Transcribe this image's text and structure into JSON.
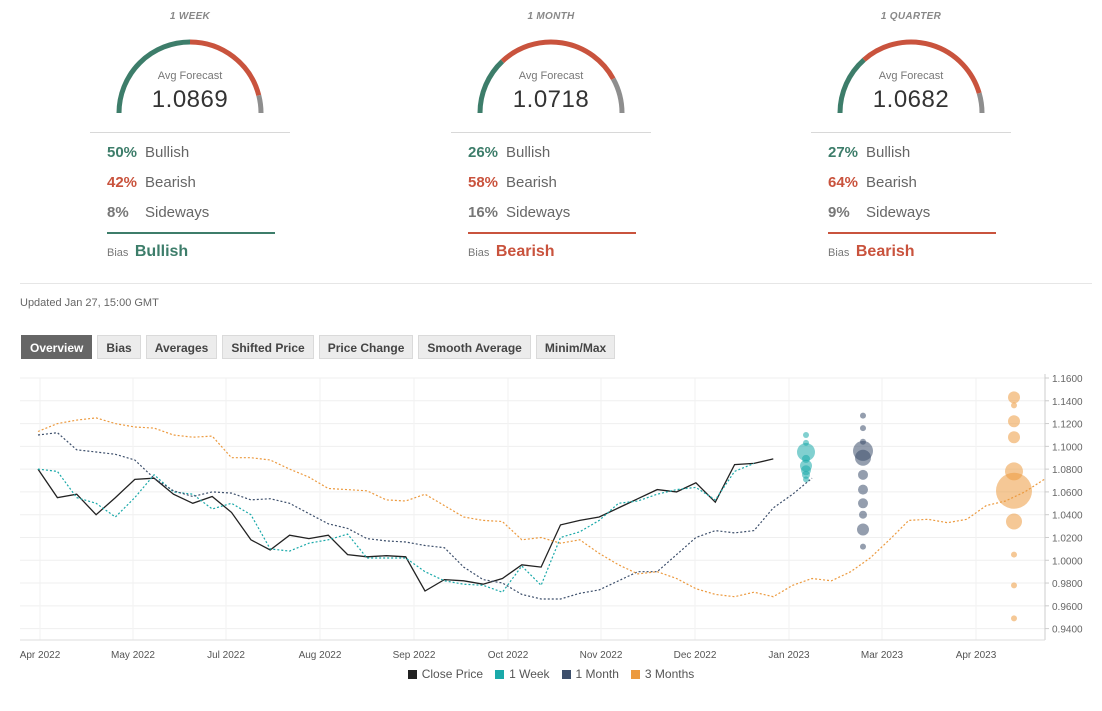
{
  "panels": [
    {
      "label": "1 WEEK",
      "caption": "Avg Forecast",
      "value": "1.0869",
      "bullish": {
        "pct": "50%",
        "label": "Bullish"
      },
      "bearish": {
        "pct": "42%",
        "label": "Bearish"
      },
      "sideways": {
        "pct": "8%",
        "label": "Sideways"
      },
      "bias_label": "Bias",
      "bias_value": "Bullish",
      "bias_color": "#3d7d6a",
      "gauge": {
        "bullish": 50,
        "bearish": 42,
        "sideways": 8
      }
    },
    {
      "label": "1 MONTH",
      "caption": "Avg Forecast",
      "value": "1.0718",
      "bullish": {
        "pct": "26%",
        "label": "Bullish"
      },
      "bearish": {
        "pct": "58%",
        "label": "Bearish"
      },
      "sideways": {
        "pct": "16%",
        "label": "Sideways"
      },
      "bias_label": "Bias",
      "bias_value": "Bearish",
      "bias_color": "#c9533d",
      "gauge": {
        "bullish": 26,
        "bearish": 58,
        "sideways": 16
      }
    },
    {
      "label": "1 QUARTER",
      "caption": "Avg Forecast",
      "value": "1.0682",
      "bullish": {
        "pct": "27%",
        "label": "Bullish"
      },
      "bearish": {
        "pct": "64%",
        "label": "Bearish"
      },
      "sideways": {
        "pct": "9%",
        "label": "Sideways"
      },
      "bias_label": "Bias",
      "bias_value": "Bearish",
      "bias_color": "#c9533d",
      "gauge": {
        "bullish": 27,
        "bearish": 64,
        "sideways": 9
      }
    }
  ],
  "updated": "Updated Jan 27, 15:00 GMT",
  "tabs": [
    "Overview",
    "Bias",
    "Averages",
    "Shifted Price",
    "Price Change",
    "Smooth Average",
    "Minim/Max"
  ],
  "active_tab": "Overview",
  "colors": {
    "bullish": "#3d7d6a",
    "bearish": "#c9533d",
    "sideways": "#8e8e8e",
    "close": "#222222",
    "week": "#1aa9a9",
    "month": "#3d4f6b",
    "quarter": "#ec9a3f"
  },
  "chart_data": {
    "type": "line",
    "y_axis_side": "right",
    "ylim": [
      0.93,
      1.16
    ],
    "y_ticks": [
      "1.1600",
      "1.1400",
      "1.1200",
      "1.1000",
      "1.0800",
      "1.0600",
      "1.0400",
      "1.0200",
      "1.0000",
      "0.9800",
      "0.9600",
      "0.9400"
    ],
    "x_ticks": [
      "Apr 2022",
      "May 2022",
      "Jul 2022",
      "Aug 2022",
      "Sep 2022",
      "Oct 2022",
      "Nov 2022",
      "Dec 2022",
      "Jan 2023",
      "Mar 2023",
      "Apr 2023"
    ],
    "legend": [
      {
        "name": "Close Price",
        "color": "#222222"
      },
      {
        "name": "1 Week",
        "color": "#1aa9a9"
      },
      {
        "name": "1 Month",
        "color": "#3d4f6b"
      },
      {
        "name": "3 Months",
        "color": "#ec9a3f"
      }
    ],
    "series": [
      {
        "name": "Close Price",
        "style": "solid",
        "points": [
          [
            0,
            1.08
          ],
          [
            1,
            1.055
          ],
          [
            2,
            1.058
          ],
          [
            3,
            1.04
          ],
          [
            4,
            1.055
          ],
          [
            5,
            1.071
          ],
          [
            6,
            1.072
          ],
          [
            7,
            1.058
          ],
          [
            8,
            1.05
          ],
          [
            9,
            1.056
          ],
          [
            10,
            1.042
          ],
          [
            11,
            1.018
          ],
          [
            12,
            1.009
          ],
          [
            13,
            1.022
          ],
          [
            14,
            1.019
          ],
          [
            15,
            1.022
          ],
          [
            16,
            1.005
          ],
          [
            17,
            1.003
          ],
          [
            18,
            1.004
          ],
          [
            19,
            1.003
          ],
          [
            20,
            0.973
          ],
          [
            21,
            0.983
          ],
          [
            22,
            0.982
          ],
          [
            23,
            0.979
          ],
          [
            24,
            0.984
          ],
          [
            25,
            0.996
          ],
          [
            26,
            0.994
          ],
          [
            27,
            1.031
          ],
          [
            28,
            1.035
          ],
          [
            29,
            1.038
          ],
          [
            30,
            1.046
          ],
          [
            31,
            1.054
          ],
          [
            32,
            1.062
          ],
          [
            33,
            1.06
          ],
          [
            34,
            1.068
          ],
          [
            35,
            1.051
          ],
          [
            36,
            1.084
          ],
          [
            37,
            1.085
          ],
          [
            38,
            1.089
          ]
        ]
      },
      {
        "name": "1 Week",
        "style": "dotted",
        "points": [
          [
            0,
            1.08
          ],
          [
            1,
            1.078
          ],
          [
            2,
            1.055
          ],
          [
            3,
            1.05
          ],
          [
            4,
            1.038
          ],
          [
            5,
            1.055
          ],
          [
            6,
            1.075
          ],
          [
            7,
            1.06
          ],
          [
            8,
            1.058
          ],
          [
            9,
            1.045
          ],
          [
            10,
            1.05
          ],
          [
            11,
            1.04
          ],
          [
            12,
            1.01
          ],
          [
            13,
            1.008
          ],
          [
            14,
            1.015
          ],
          [
            15,
            1.018
          ],
          [
            16,
            1.023
          ],
          [
            17,
            1.002
          ],
          [
            18,
            1.002
          ],
          [
            19,
            1.002
          ],
          [
            20,
            0.99
          ],
          [
            21,
            0.982
          ],
          [
            22,
            0.979
          ],
          [
            23,
            0.978
          ],
          [
            24,
            0.972
          ],
          [
            25,
            0.995
          ],
          [
            26,
            0.978
          ],
          [
            27,
            1.02
          ],
          [
            28,
            1.025
          ],
          [
            29,
            1.035
          ],
          [
            30,
            1.05
          ],
          [
            31,
            1.052
          ],
          [
            32,
            1.058
          ],
          [
            33,
            1.062
          ],
          [
            34,
            1.064
          ],
          [
            35,
            1.053
          ],
          [
            36,
            1.078
          ],
          [
            37,
            1.085
          ]
        ]
      },
      {
        "name": "1 Month",
        "style": "dotted",
        "points": [
          [
            0,
            1.11
          ],
          [
            1,
            1.112
          ],
          [
            2,
            1.097
          ],
          [
            3,
            1.095
          ],
          [
            4,
            1.093
          ],
          [
            5,
            1.088
          ],
          [
            6,
            1.072
          ],
          [
            7,
            1.061
          ],
          [
            8,
            1.056
          ],
          [
            9,
            1.06
          ],
          [
            10,
            1.059
          ],
          [
            11,
            1.053
          ],
          [
            12,
            1.054
          ],
          [
            13,
            1.05
          ],
          [
            14,
            1.041
          ],
          [
            15,
            1.032
          ],
          [
            16,
            1.028
          ],
          [
            17,
            1.019
          ],
          [
            18,
            1.017
          ],
          [
            19,
            1.016
          ],
          [
            20,
            1.013
          ],
          [
            21,
            1.011
          ],
          [
            22,
            0.994
          ],
          [
            23,
            0.983
          ],
          [
            24,
            0.98
          ],
          [
            25,
            0.97
          ],
          [
            26,
            0.966
          ],
          [
            27,
            0.966
          ],
          [
            28,
            0.971
          ],
          [
            29,
            0.974
          ],
          [
            30,
            0.982
          ],
          [
            31,
            0.99
          ],
          [
            32,
            0.99
          ],
          [
            33,
            1.005
          ],
          [
            34,
            1.02
          ],
          [
            35,
            1.026
          ],
          [
            36,
            1.024
          ],
          [
            37,
            1.026
          ],
          [
            38,
            1.046
          ],
          [
            39,
            1.058
          ],
          [
            40,
            1.072
          ]
        ]
      },
      {
        "name": "3 Months",
        "style": "dotted",
        "points": [
          [
            0,
            1.113
          ],
          [
            1,
            1.12
          ],
          [
            2,
            1.123
          ],
          [
            3,
            1.125
          ],
          [
            4,
            1.12
          ],
          [
            5,
            1.117
          ],
          [
            6,
            1.116
          ],
          [
            7,
            1.11
          ],
          [
            8,
            1.108
          ],
          [
            9,
            1.109
          ],
          [
            10,
            1.09
          ],
          [
            11,
            1.09
          ],
          [
            12,
            1.088
          ],
          [
            13,
            1.08
          ],
          [
            14,
            1.073
          ],
          [
            15,
            1.063
          ],
          [
            16,
            1.062
          ],
          [
            17,
            1.061
          ],
          [
            18,
            1.053
          ],
          [
            19,
            1.052
          ],
          [
            20,
            1.058
          ],
          [
            21,
            1.048
          ],
          [
            22,
            1.038
          ],
          [
            23,
            1.035
          ],
          [
            24,
            1.034
          ],
          [
            25,
            1.018
          ],
          [
            26,
            1.02
          ],
          [
            27,
            1.015
          ],
          [
            28,
            1.018
          ],
          [
            29,
            1.006
          ],
          [
            30,
            0.996
          ],
          [
            31,
            0.988
          ],
          [
            32,
            0.99
          ],
          [
            33,
            0.984
          ],
          [
            34,
            0.975
          ],
          [
            35,
            0.97
          ],
          [
            36,
            0.968
          ],
          [
            37,
            0.972
          ],
          [
            38,
            0.968
          ],
          [
            39,
            0.978
          ],
          [
            40,
            0.984
          ],
          [
            41,
            0.982
          ],
          [
            42,
            0.99
          ],
          [
            43,
            1.002
          ],
          [
            44,
            1.018
          ],
          [
            45,
            1.035
          ],
          [
            46,
            1.036
          ],
          [
            47,
            1.033
          ],
          [
            48,
            1.036
          ],
          [
            49,
            1.048
          ],
          [
            50,
            1.052
          ],
          [
            51,
            1.06
          ],
          [
            52,
            1.071
          ]
        ]
      }
    ],
    "bubbles": [
      {
        "series": "1 Week",
        "values": [
          1.11,
          1.103,
          1.095,
          1.089,
          1.083,
          1.079,
          1.075,
          1.071
        ],
        "sizes": [
          3,
          3,
          9,
          4,
          6,
          5,
          4,
          3
        ]
      },
      {
        "series": "1 Month",
        "values": [
          1.127,
          1.116,
          1.104,
          1.096,
          1.09,
          1.075,
          1.062,
          1.05,
          1.04,
          1.027,
          1.012
        ],
        "sizes": [
          3,
          3,
          3,
          10,
          8,
          5,
          5,
          5,
          4,
          6,
          3
        ]
      },
      {
        "series": "3 Months",
        "values": [
          1.143,
          1.136,
          1.122,
          1.108,
          1.078,
          1.061,
          1.034,
          1.005,
          0.978,
          0.949
        ],
        "sizes": [
          6,
          3,
          6,
          6,
          9,
          18,
          8,
          3,
          3,
          3
        ]
      }
    ]
  }
}
